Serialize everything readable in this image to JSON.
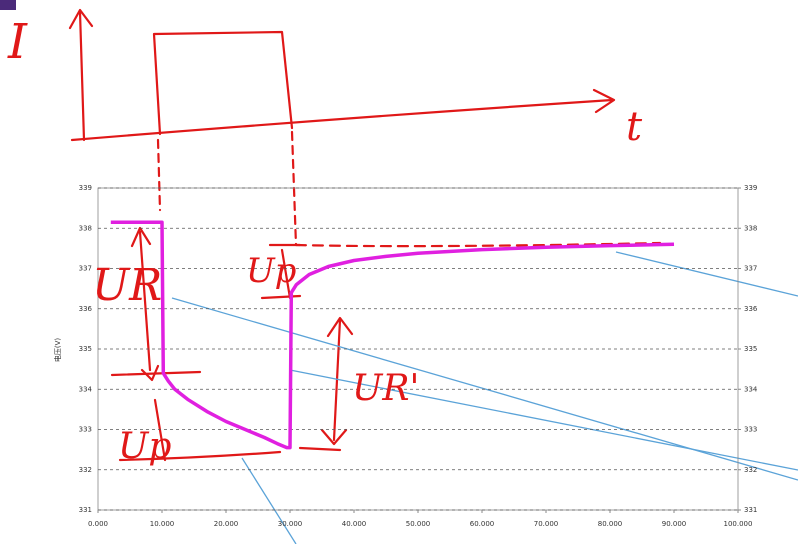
{
  "chart_data": {
    "type": "line",
    "y_label": "电压(V)",
    "x": [
      2000,
      10000,
      10200,
      11000,
      12000,
      14000,
      17000,
      20000,
      23000,
      26000,
      28000,
      29500,
      30000,
      30200,
      31000,
      33000,
      36000,
      40000,
      45000,
      50000,
      60000,
      70000,
      80000,
      90000
    ],
    "series": [
      {
        "color": "#e020e0",
        "values": [
          338.15,
          338.15,
          334.4,
          334.2,
          334.0,
          333.75,
          333.45,
          333.2,
          333.0,
          332.8,
          332.65,
          332.55,
          332.55,
          336.4,
          336.6,
          336.85,
          337.05,
          337.2,
          337.3,
          337.38,
          337.47,
          337.53,
          337.57,
          337.6
        ]
      }
    ],
    "xlim": [
      0,
      100000
    ],
    "xticks": [
      {
        "value": 0,
        "label": "0.000"
      },
      {
        "value": 10000,
        "label": "10.000"
      },
      {
        "value": 20000,
        "label": "20.000"
      },
      {
        "value": 30000,
        "label": "30.000"
      },
      {
        "value": 40000,
        "label": "40.000"
      },
      {
        "value": 50000,
        "label": "50.000"
      },
      {
        "value": 60000,
        "label": "60.000"
      },
      {
        "value": 70000,
        "label": "70.000"
      },
      {
        "value": 80000,
        "label": "80.000"
      },
      {
        "value": 90000,
        "label": "90.000"
      },
      {
        "value": 100000,
        "label": "100.000"
      }
    ],
    "ylim": [
      331,
      339
    ],
    "yticks": [
      331,
      332,
      333,
      334,
      335,
      336,
      337,
      338,
      339
    ],
    "y2lim": [
      331,
      339
    ],
    "y2ticks": [
      331,
      332,
      333,
      334,
      335,
      336,
      337,
      338,
      339
    ],
    "grid": true,
    "annotations": [
      "I",
      "t",
      "UR",
      "Up",
      "Up",
      "UR'"
    ]
  }
}
